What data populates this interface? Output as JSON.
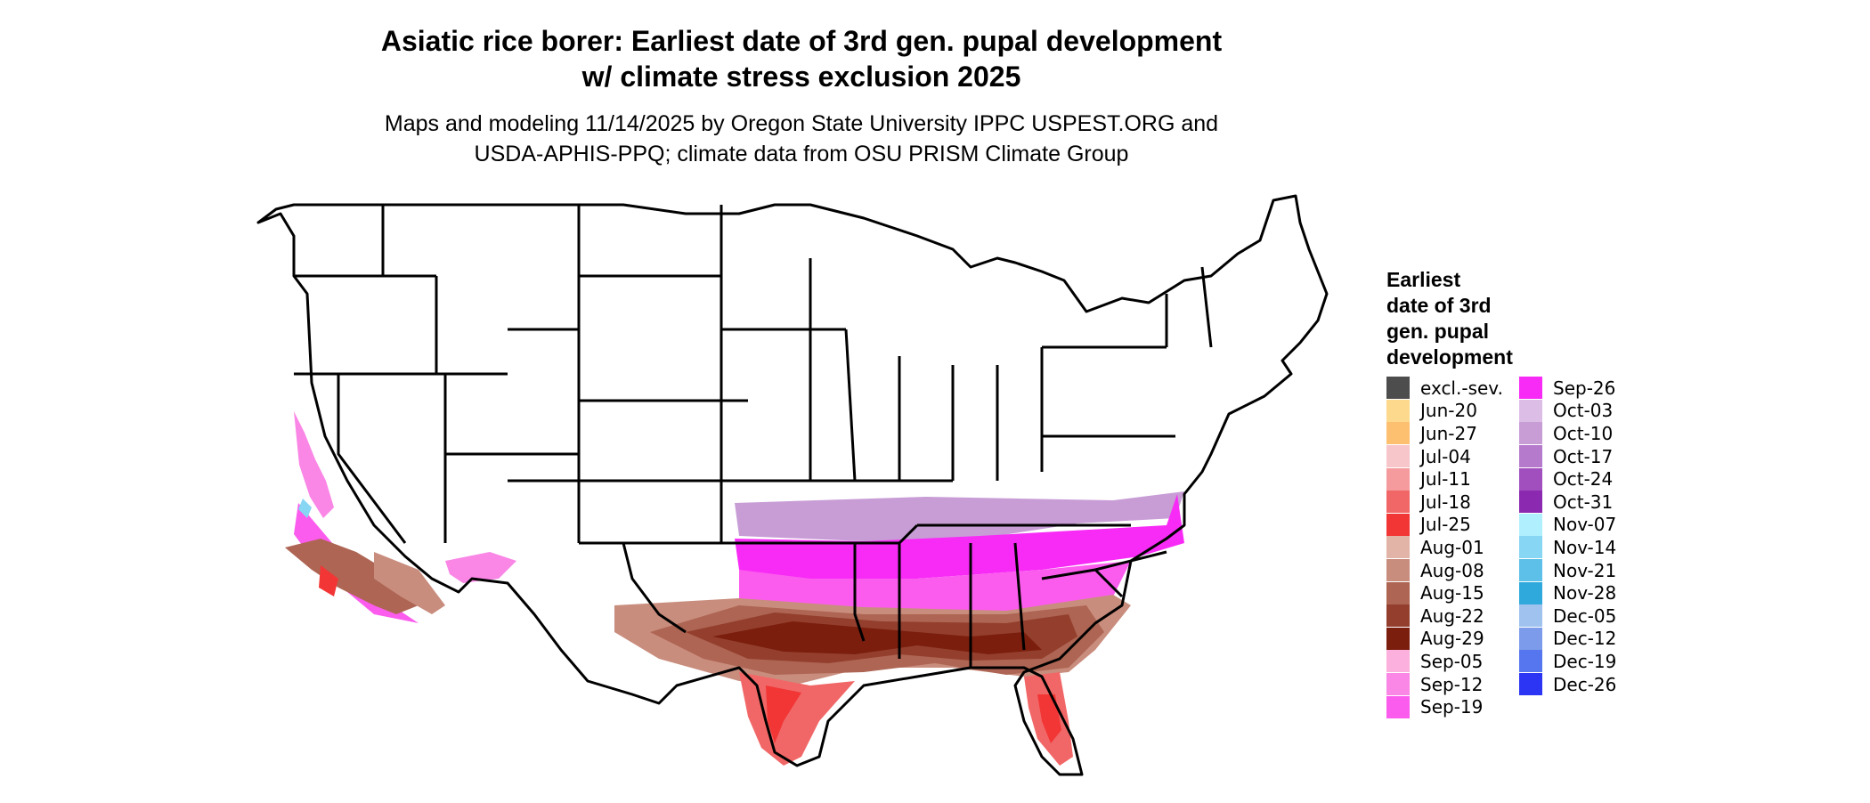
{
  "title": {
    "line1": "Asiatic rice borer: Earliest date of 3rd gen. pupal development",
    "line2": "w/ climate stress exclusion 2025"
  },
  "subtitle": {
    "line1": "Maps and modeling 11/14/2025 by Oregon State University IPPC USPEST.ORG and",
    "line2": "USDA-APHIS-PPQ; climate data from OSU PRISM Climate Group"
  },
  "legend": {
    "title_lines": [
      "Earliest",
      "date of 3rd",
      "gen. pupal",
      "development"
    ],
    "columns": [
      [
        {
          "label": "excl.-sev.",
          "color": "#4d4d4d"
        },
        {
          "label": "Jun-20",
          "color": "#fdd98e"
        },
        {
          "label": "Jun-27",
          "color": "#fdc070"
        },
        {
          "label": "Jul-04",
          "color": "#f7c6ca"
        },
        {
          "label": "Jul-11",
          "color": "#f59a9d"
        },
        {
          "label": "Jul-18",
          "color": "#f16767"
        },
        {
          "label": "Jul-25",
          "color": "#f23636"
        },
        {
          "label": "Aug-01",
          "color": "#e2b3a7"
        },
        {
          "label": "Aug-08",
          "color": "#c98d7e"
        },
        {
          "label": "Aug-15",
          "color": "#ae6553"
        },
        {
          "label": "Aug-22",
          "color": "#943f2e"
        },
        {
          "label": "Aug-29",
          "color": "#7b1e0e"
        },
        {
          "label": "Sep-05",
          "color": "#fbb0dd"
        },
        {
          "label": "Sep-12",
          "color": "#fa86e6"
        },
        {
          "label": "Sep-19",
          "color": "#fb5ced"
        }
      ],
      [
        {
          "label": "Sep-26",
          "color": "#f82bf6"
        },
        {
          "label": "Oct-03",
          "color": "#dcbde6"
        },
        {
          "label": "Oct-10",
          "color": "#c89dd6"
        },
        {
          "label": "Oct-17",
          "color": "#b57acc"
        },
        {
          "label": "Oct-24",
          "color": "#a14fbf"
        },
        {
          "label": "Oct-31",
          "color": "#8b29b0"
        },
        {
          "label": "Nov-07",
          "color": "#b0effd"
        },
        {
          "label": "Nov-14",
          "color": "#87d6f3"
        },
        {
          "label": "Nov-21",
          "color": "#5cc0e8"
        },
        {
          "label": "Nov-28",
          "color": "#2fa8dc"
        },
        {
          "label": "Dec-05",
          "color": "#a0c2ee"
        },
        {
          "label": "Dec-12",
          "color": "#7c9ceb"
        },
        {
          "label": "Dec-19",
          "color": "#5576ee"
        },
        {
          "label": "Dec-26",
          "color": "#2c35f4"
        }
      ]
    ]
  },
  "map_colors": {
    "outline": "#000000",
    "cool_purple": "#c89dd6",
    "late_magenta": "#f82bf6",
    "sep_pink": "#fb5ced",
    "light_pink": "#fa86e6",
    "aug_light": "#c98d7e",
    "aug_mid": "#ae6553",
    "aug_dark": "#943f2e",
    "aug_darkest": "#7b1e0e",
    "july_red": "#f23636",
    "july_pink": "#f16767",
    "light_blue": "#87d6f3"
  }
}
